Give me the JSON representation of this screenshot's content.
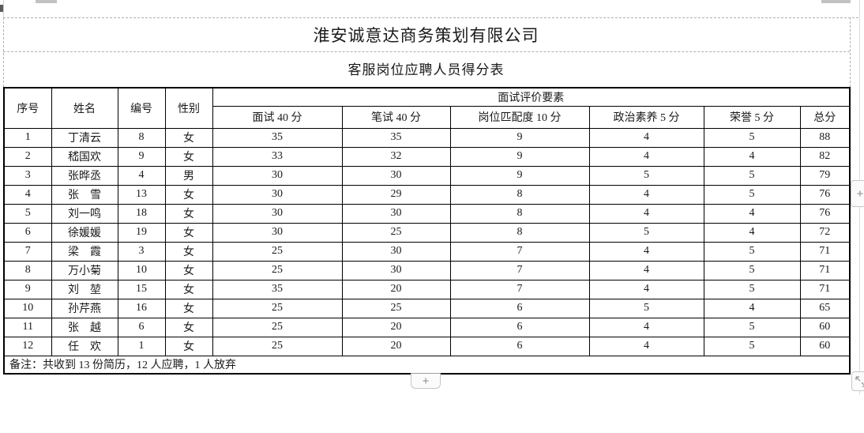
{
  "doc": {
    "title": "淮安诚意达商务策划有限公司",
    "subtitle": "客服岗位应聘人员得分表"
  },
  "table": {
    "merged_header": "面试评价要素",
    "columns": [
      "序号",
      "姓名",
      "编号",
      "性别",
      "面试 40 分",
      "笔试 40 分",
      "岗位匹配度 10 分",
      "政治素养 5 分",
      "荣誉 5 分",
      "总分"
    ],
    "rows": [
      [
        "1",
        "丁清云",
        "8",
        "女",
        "35",
        "35",
        "9",
        "4",
        "5",
        "88"
      ],
      [
        "2",
        "嵇国欢",
        "9",
        "女",
        "33",
        "32",
        "9",
        "4",
        "4",
        "82"
      ],
      [
        "3",
        "张晔丞",
        "4",
        "男",
        "30",
        "30",
        "9",
        "5",
        "5",
        "79"
      ],
      [
        "4",
        "张　雪",
        "13",
        "女",
        "30",
        "29",
        "8",
        "4",
        "5",
        "76"
      ],
      [
        "5",
        "刘一鸣",
        "18",
        "女",
        "30",
        "30",
        "8",
        "4",
        "4",
        "76"
      ],
      [
        "6",
        "徐媛媛",
        "19",
        "女",
        "30",
        "25",
        "8",
        "5",
        "4",
        "72"
      ],
      [
        "7",
        "梁　霞",
        "3",
        "女",
        "25",
        "30",
        "7",
        "4",
        "5",
        "71"
      ],
      [
        "8",
        "万小菊",
        "10",
        "女",
        "25",
        "30",
        "7",
        "4",
        "5",
        "71"
      ],
      [
        "9",
        "刘　堃",
        "15",
        "女",
        "35",
        "20",
        "7",
        "4",
        "5",
        "71"
      ],
      [
        "10",
        "孙芹燕",
        "16",
        "女",
        "25",
        "25",
        "6",
        "5",
        "4",
        "65"
      ],
      [
        "11",
        "张　越",
        "6",
        "女",
        "25",
        "20",
        "6",
        "4",
        "5",
        "60"
      ],
      [
        "12",
        "任　欢",
        "1",
        "女",
        "25",
        "20",
        "6",
        "4",
        "5",
        "60"
      ]
    ],
    "footnote": "备注：共收到 13 份简历，12 人应聘，1 人放弃"
  },
  "controls": {
    "add_row_label": "+",
    "add_column_label": "+"
  },
  "colors": {
    "border": "#000000",
    "gridline_dashed": "#b0b0b0",
    "control_border": "#c6c6c6",
    "control_glyph": "#8a8a8a"
  }
}
